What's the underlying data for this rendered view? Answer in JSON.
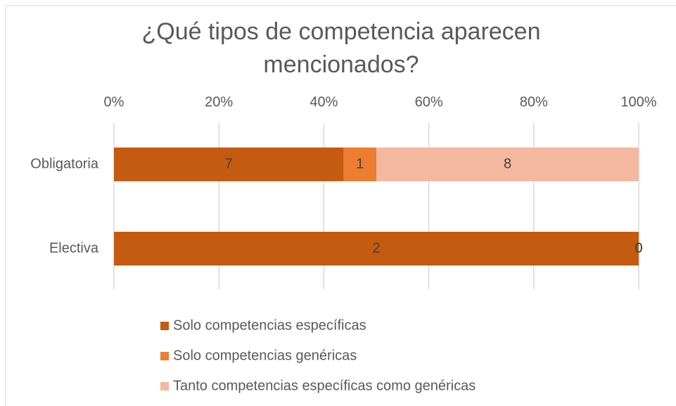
{
  "chart_data": {
    "type": "bar",
    "orientation": "horizontal",
    "stacking": "percent",
    "title": "¿Qué tipos de competencia aparecen mencionados?",
    "categories": [
      "Obligatoria",
      "Electiva"
    ],
    "series": [
      {
        "name": "Solo competencias específicas",
        "color": "#c55a11",
        "values": [
          7,
          2
        ]
      },
      {
        "name": "Solo competencias genéricas",
        "color": "#ed7d31",
        "values": [
          1,
          0
        ]
      },
      {
        "name": "Tanto competencias específicas como genéricas",
        "color": "#f4b8a0",
        "values": [
          8,
          0
        ]
      }
    ],
    "xlim": [
      0,
      100
    ],
    "xticks": [
      {
        "value": 0,
        "label": "0%"
      },
      {
        "value": 20,
        "label": "20%"
      },
      {
        "value": 40,
        "label": "40%"
      },
      {
        "value": 60,
        "label": "60%"
      },
      {
        "value": 80,
        "label": "80%"
      },
      {
        "value": 100,
        "label": "100%"
      }
    ],
    "grid": true,
    "legend": "bottom"
  }
}
